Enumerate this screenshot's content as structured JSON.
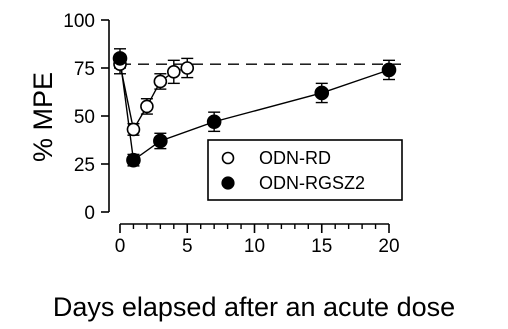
{
  "chart_data": {
    "type": "scatter",
    "xlabel": "Days elapsed after an acute dose",
    "ylabel": "% MPE",
    "xlim": [
      0,
      20
    ],
    "ylim": [
      0,
      100
    ],
    "x_ticks": [
      0,
      5,
      10,
      15,
      20
    ],
    "x_minor_ticks": [
      1,
      2,
      3,
      4,
      6,
      7,
      8,
      9,
      11,
      12,
      13,
      14,
      16,
      17,
      18,
      19
    ],
    "y_ticks": [
      0,
      25,
      50,
      75,
      100
    ],
    "reference_line": {
      "y": 77,
      "style": "dashed"
    },
    "legend": {
      "placement": "lower-right"
    },
    "series": [
      {
        "name": "ODN-RD",
        "marker": "open-circle",
        "x": [
          0,
          1,
          2,
          3,
          4,
          5
        ],
        "y": [
          77,
          43,
          55,
          68,
          73,
          75
        ],
        "err": [
          5,
          3,
          4,
          4,
          6,
          5
        ]
      },
      {
        "name": "ODN-RGSZ2",
        "marker": "filled-circle",
        "x": [
          0,
          1,
          3,
          7,
          15,
          20
        ],
        "y": [
          80,
          27,
          37,
          47,
          62,
          74
        ],
        "err": [
          5,
          3,
          4,
          5,
          5,
          5
        ]
      }
    ]
  }
}
